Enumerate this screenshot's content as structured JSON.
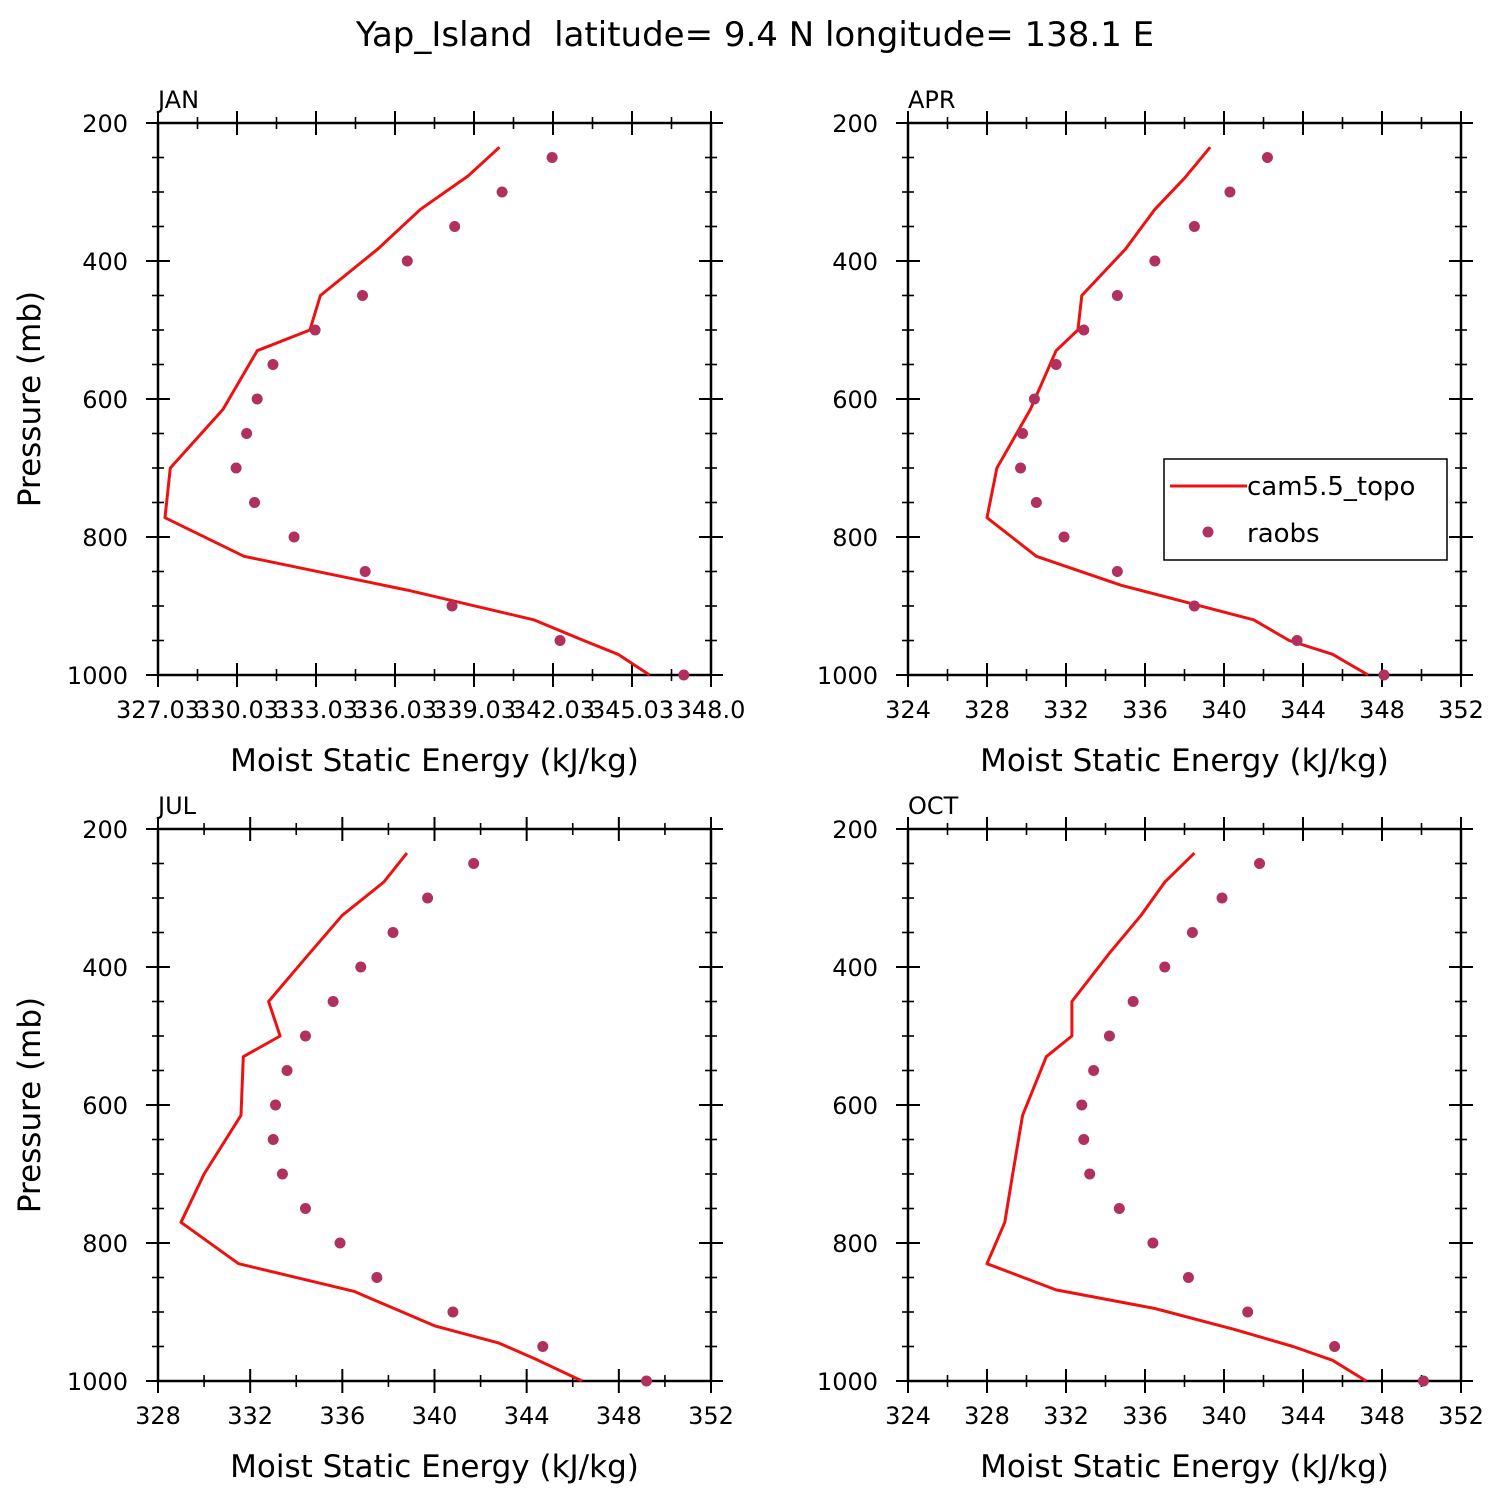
{
  "title": "Yap_Island  latitude= 9.4 N longitude= 138.1 E",
  "legend": {
    "model_label": "cam5.5_topo",
    "obs_label": "raobs",
    "model_color": "#ee1111",
    "obs_color": "#b03060"
  },
  "chart_data": [
    {
      "type": "line",
      "panel": "JAN",
      "title": "JAN",
      "xlabel": "Moist Static Energy (kJ/kg)",
      "ylabel": "Pressure (mb)",
      "xlim": [
        327.0333,
        348.0333
      ],
      "ylim": [
        1000,
        200
      ],
      "xticks": [
        327.0333,
        330.0333,
        333.0333,
        336.0333,
        339.0333,
        342.0333,
        345.0333,
        348.0333
      ],
      "xtick_labels": [
        "327.03",
        "330.03",
        "333.03",
        "336.03",
        "339.03",
        "342.03",
        "345.03",
        "348.0"
      ],
      "yticks": [
        200,
        400,
        600,
        800,
        1000
      ],
      "ytick_labels": [
        "200",
        "400",
        "600",
        "800",
        "1000"
      ],
      "show_ylabel": true,
      "show_legend": false,
      "series": [
        {
          "name": "cam5.5_topo",
          "style": "line",
          "x": [
            340.0,
            338.8,
            337.0,
            335.4,
            333.2,
            332.8,
            330.8,
            329.5,
            327.5,
            327.3,
            330.3,
            336.5,
            341.3,
            343.2,
            344.5,
            345.7
          ],
          "y": [
            235,
            277,
            325,
            382,
            450,
            500,
            530,
            615,
            700,
            772,
            828,
            877,
            920,
            950,
            970,
            1000
          ]
        },
        {
          "name": "raobs",
          "style": "marker",
          "x": [
            342.0,
            340.1,
            338.3,
            336.5,
            334.8,
            333.0,
            331.4,
            330.8,
            330.4,
            330.0,
            330.7,
            332.2,
            334.9,
            338.2,
            342.3,
            347.0
          ],
          "y": [
            250,
            300,
            350,
            400,
            450,
            500,
            550,
            600,
            650,
            700,
            750,
            800,
            850,
            900,
            950,
            1000
          ]
        }
      ]
    },
    {
      "type": "line",
      "panel": "APR",
      "title": "APR",
      "xlabel": "Moist Static Energy (kJ/kg)",
      "ylabel": "Pressure (mb)",
      "xlim": [
        324,
        352
      ],
      "ylim": [
        1000,
        200
      ],
      "xticks": [
        324,
        328,
        332,
        336,
        340,
        344,
        348,
        352
      ],
      "xtick_labels": [
        "324",
        "328",
        "332",
        "336",
        "340",
        "344",
        "348",
        "352"
      ],
      "yticks": [
        200,
        400,
        600,
        800,
        1000
      ],
      "ytick_labels": [
        "200",
        "400",
        "600",
        "800",
        "1000"
      ],
      "show_ylabel": false,
      "show_legend": true,
      "series": [
        {
          "name": "cam5.5_topo",
          "style": "line",
          "x": [
            339.3,
            338.0,
            336.5,
            335.0,
            332.8,
            332.6,
            331.5,
            330.2,
            328.5,
            328.0,
            330.5,
            334.8,
            341.5,
            343.3,
            345.5,
            347.3
          ],
          "y": [
            235,
            280,
            325,
            383,
            450,
            500,
            530,
            615,
            700,
            772,
            828,
            870,
            920,
            950,
            970,
            1000
          ]
        },
        {
          "name": "raobs",
          "style": "marker",
          "x": [
            342.2,
            340.3,
            338.5,
            336.5,
            334.6,
            332.9,
            331.5,
            330.4,
            329.8,
            329.7,
            330.5,
            331.9,
            334.6,
            338.5,
            343.7,
            348.1
          ],
          "y": [
            250,
            300,
            350,
            400,
            450,
            500,
            550,
            600,
            650,
            700,
            750,
            800,
            850,
            900,
            950,
            1000
          ]
        }
      ]
    },
    {
      "type": "line",
      "panel": "JUL",
      "title": "JUL",
      "xlabel": "Moist Static Energy (kJ/kg)",
      "ylabel": "Pressure (mb)",
      "xlim": [
        328,
        352
      ],
      "ylim": [
        1000,
        200
      ],
      "xticks": [
        328,
        332,
        336,
        340,
        344,
        348,
        352
      ],
      "xtick_labels": [
        "328",
        "332",
        "336",
        "340",
        "344",
        "348",
        "352"
      ],
      "yticks": [
        200,
        400,
        600,
        800,
        1000
      ],
      "ytick_labels": [
        "200",
        "400",
        "600",
        "800",
        "1000"
      ],
      "show_ylabel": true,
      "show_legend": false,
      "series": [
        {
          "name": "cam5.5_topo",
          "style": "line",
          "x": [
            338.8,
            337.8,
            336.0,
            334.5,
            332.8,
            333.3,
            331.7,
            331.6,
            330.0,
            329.0,
            331.5,
            336.5,
            340.0,
            342.8,
            344.5,
            346.4
          ],
          "y": [
            235,
            277,
            325,
            383,
            450,
            500,
            530,
            615,
            700,
            770,
            830,
            870,
            920,
            945,
            970,
            1000
          ]
        },
        {
          "name": "raobs",
          "style": "marker",
          "x": [
            341.7,
            339.7,
            338.2,
            336.8,
            335.6,
            334.4,
            333.6,
            333.1,
            333.0,
            333.4,
            334.4,
            335.9,
            337.5,
            340.8,
            344.7,
            349.2
          ],
          "y": [
            250,
            300,
            350,
            400,
            450,
            500,
            550,
            600,
            650,
            700,
            750,
            800,
            850,
            900,
            950,
            1000
          ]
        }
      ]
    },
    {
      "type": "line",
      "panel": "OCT",
      "title": "OCT",
      "xlabel": "Moist Static Energy (kJ/kg)",
      "ylabel": "Pressure (mb)",
      "xlim": [
        324,
        352
      ],
      "ylim": [
        1000,
        200
      ],
      "xticks": [
        324,
        328,
        332,
        336,
        340,
        344,
        348,
        352
      ],
      "xtick_labels": [
        "324",
        "328",
        "332",
        "336",
        "340",
        "344",
        "348",
        "352"
      ],
      "yticks": [
        200,
        400,
        600,
        800,
        1000
      ],
      "ytick_labels": [
        "200",
        "400",
        "600",
        "800",
        "1000"
      ],
      "show_ylabel": false,
      "show_legend": false,
      "series": [
        {
          "name": "cam5.5_topo",
          "style": "line",
          "x": [
            338.5,
            337.0,
            335.8,
            334.2,
            332.3,
            332.3,
            331.0,
            329.8,
            329.3,
            328.9,
            328.0,
            331.5,
            336.5,
            340.5,
            343.5,
            345.5,
            347.2
          ],
          "y": [
            235,
            277,
            325,
            380,
            450,
            500,
            530,
            615,
            700,
            770,
            830,
            868,
            895,
            925,
            950,
            970,
            1000
          ]
        },
        {
          "name": "raobs",
          "style": "marker",
          "x": [
            341.8,
            339.9,
            338.4,
            337.0,
            335.4,
            334.2,
            333.4,
            332.8,
            332.9,
            333.2,
            334.7,
            336.4,
            338.2,
            341.2,
            345.6,
            350.1
          ],
          "y": [
            250,
            300,
            350,
            400,
            450,
            500,
            550,
            600,
            650,
            700,
            750,
            800,
            850,
            900,
            950,
            1000
          ]
        }
      ]
    }
  ]
}
